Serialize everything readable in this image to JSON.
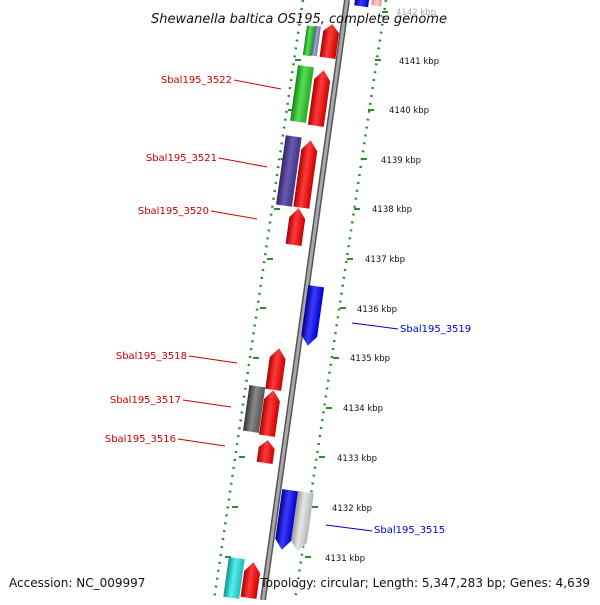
{
  "title": "Shewanella baltica OS195, complete genome",
  "footer": {
    "accession": "Accession: NC_009997",
    "summary": "Topology: circular; Length: 5,347,283 bp; Genes: 4,639"
  },
  "scale_ticks": [
    {
      "label": "4142 kbp",
      "pos_kbp": 4142
    },
    {
      "label": "4141 kbp",
      "pos_kbp": 4141
    },
    {
      "label": "4140 kbp",
      "pos_kbp": 4140
    },
    {
      "label": "4139 kbp",
      "pos_kbp": 4139
    },
    {
      "label": "4138 kbp",
      "pos_kbp": 4138
    },
    {
      "label": "4137 kbp",
      "pos_kbp": 4137
    },
    {
      "label": "4136 kbp",
      "pos_kbp": 4136
    },
    {
      "label": "4135 kbp",
      "pos_kbp": 4135
    },
    {
      "label": "4134 kbp",
      "pos_kbp": 4134
    },
    {
      "label": "4133 kbp",
      "pos_kbp": 4133
    },
    {
      "label": "4132 kbp",
      "pos_kbp": 4132
    },
    {
      "label": "4131 kbp",
      "pos_kbp": 4131
    }
  ],
  "gene_labels": [
    {
      "name": "Sbal195_3522",
      "color": "#cc0000",
      "side": "left"
    },
    {
      "name": "Sbal195_3521",
      "color": "#cc0000",
      "side": "left"
    },
    {
      "name": "Sbal195_3520",
      "color": "#cc0000",
      "side": "left"
    },
    {
      "name": "Sbal195_3519",
      "color": "#0000cc",
      "side": "right"
    },
    {
      "name": "Sbal195_3518",
      "color": "#cc0000",
      "side": "left"
    },
    {
      "name": "Sbal195_3517",
      "color": "#cc0000",
      "side": "left"
    },
    {
      "name": "Sbal195_3516",
      "color": "#cc0000",
      "side": "left"
    },
    {
      "name": "Sbal195_3515",
      "color": "#0000cc",
      "side": "right"
    }
  ],
  "colors": {
    "backbone": "#8a8a8a",
    "guide_dots": "#2e8b2e",
    "forward_red": "#ee1111",
    "reverse_blue": "#1010ee",
    "green": "#33bb33",
    "purple": "#554499",
    "dark_gray": "#666666",
    "light_gray": "#c0c0c0",
    "cyan": "#22cccc"
  }
}
